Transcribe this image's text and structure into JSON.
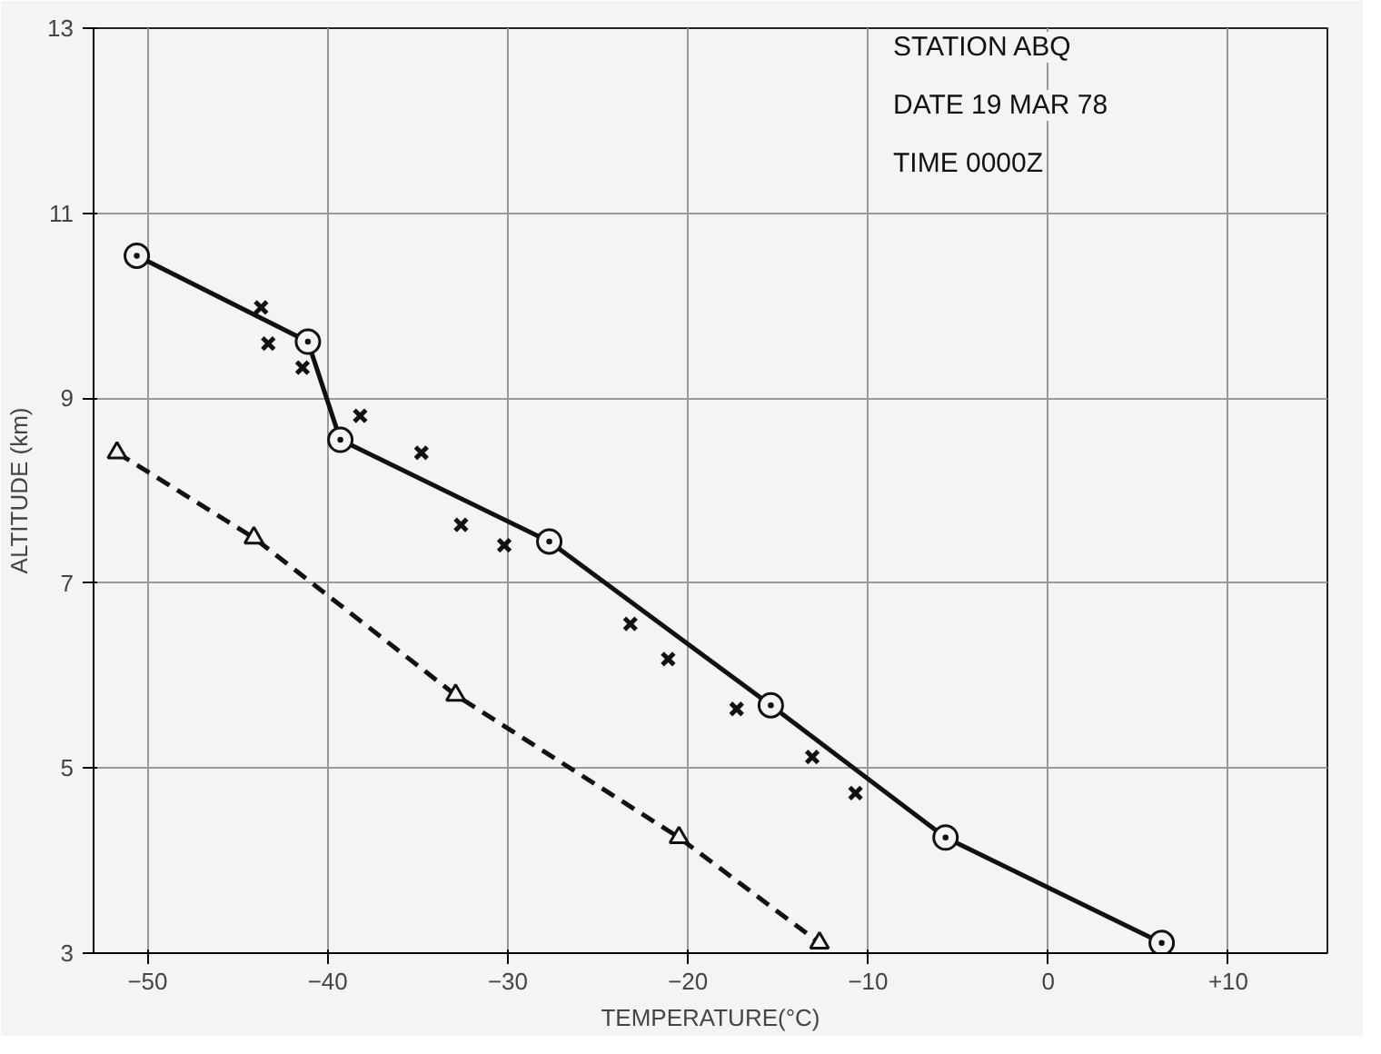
{
  "chart_data": {
    "type": "line",
    "xlabel": "TEMPERATURE(°C)",
    "ylabel": "ALTITUDE (km)",
    "xlim": [
      -53,
      15.5
    ],
    "ylim": [
      3,
      13
    ],
    "xticks": [
      -50,
      -40,
      -30,
      -20,
      -10,
      0,
      {
        "value": 10,
        "label": "+10"
      }
    ],
    "yticks": [
      3,
      5,
      7,
      9,
      11,
      13
    ],
    "grid": true,
    "annotations": [
      "STATION ABQ",
      "DATE 19 MAR 78",
      "TIME 0000Z"
    ],
    "series": [
      {
        "color": "#111111",
        "marker": "circle",
        "line_style": "solid",
        "x": [
          -50.6,
          -41.1,
          -39.3,
          -27.7,
          -15.4,
          -5.7,
          6.3
        ],
        "values": [
          10.54,
          9.61,
          8.55,
          7.45,
          5.68,
          4.25,
          3.11
        ]
      },
      {
        "type": "scatter",
        "color": "#111111",
        "marker": "cross",
        "x": [
          -43.7,
          -43.3,
          -41.4,
          -38.2,
          -34.8,
          -32.6,
          -30.2,
          -23.2,
          -21.1,
          -17.3,
          -13.1,
          -10.7
        ],
        "values": [
          9.98,
          9.59,
          9.33,
          8.81,
          8.41,
          7.63,
          7.41,
          6.56,
          6.18,
          5.64,
          5.12,
          4.73
        ]
      },
      {
        "color": "#111111",
        "marker": "triangle",
        "line_style": "dashed",
        "x": [
          -51.7,
          -44.1,
          -32.9,
          -20.5,
          -12.7
        ],
        "values": [
          8.41,
          7.49,
          5.79,
          4.25,
          3.11
        ]
      }
    ]
  }
}
